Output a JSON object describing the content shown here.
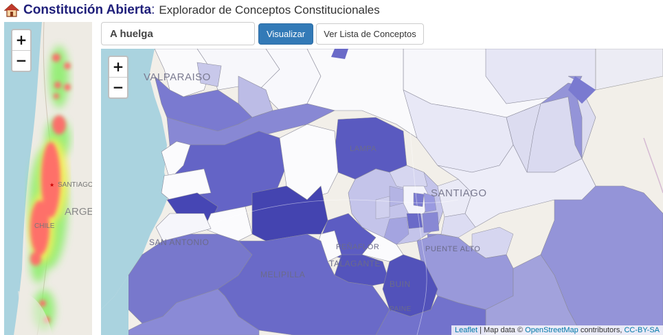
{
  "header": {
    "title": "Constitución Abierta",
    "separator": ":",
    "subtitle": "Explorador de Conceptos Constitucionales"
  },
  "mini_map": {
    "zoom_in": "+",
    "zoom_out": "−",
    "labels": {
      "santiago": "SANTIAGO",
      "argentina": "ARGE",
      "chile": "CHILE"
    }
  },
  "search": {
    "value": "A huelga",
    "visualize_button": "Visualizar",
    "list_button": "Ver Lista de Conceptos"
  },
  "main_map": {
    "zoom_in": "+",
    "zoom_out": "−",
    "labels": {
      "valparaiso": "VALPARAISO",
      "lampa": "LAMPA",
      "santiago": "SANTIAGO",
      "san_antonio": "SAN ANTONIO",
      "penaflor": "PEÑAFLOR",
      "talagante": "TALAGANTE",
      "puente_alto": "PUENTE ALTO",
      "melipilla": "MELIPILLA",
      "buin": "BUIN",
      "paine": "PAINE"
    },
    "attribution": {
      "leaflet": "Leaflet",
      "sep": " | ",
      "map_data": "Map data © ",
      "osm": "OpenStreetMap",
      "contributors": " contributors, ",
      "license": "CC-BY-SA"
    }
  },
  "colors": {
    "choropleth_dark": "#4a4ab8",
    "choropleth_mid": "#6a6ac8",
    "choropleth_light": "#b8b8e4",
    "heat_red": "#ff6a6a",
    "heat_green": "#88ee66",
    "button_primary": "#337ab7"
  }
}
